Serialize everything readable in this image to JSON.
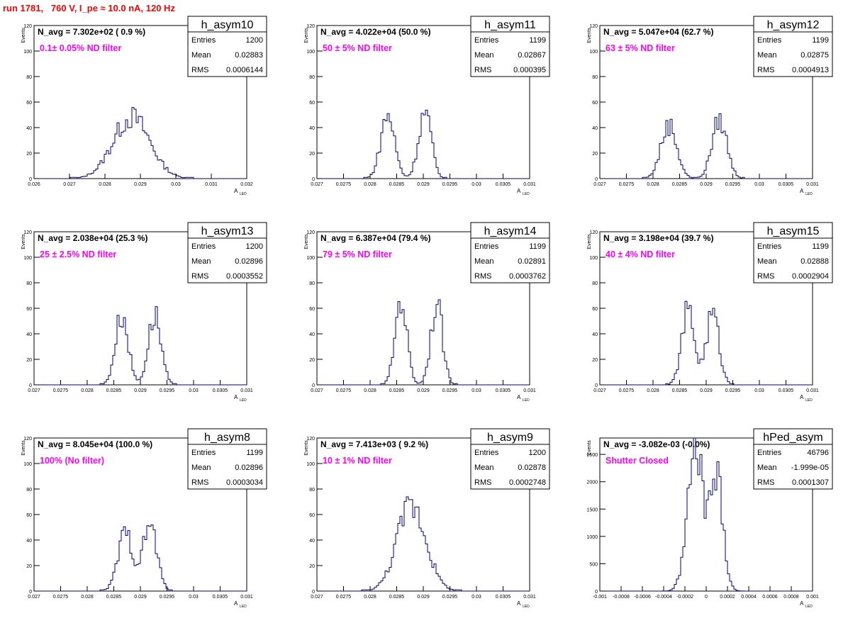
{
  "run_title": "run 1781,   760 V, I_pe ≈ 10.0 nA, 120 Hz",
  "colors": {
    "line": "#000080",
    "annot": "#ff00ff",
    "title": "#ff0000"
  },
  "stat_labels": {
    "entries": "Entries",
    "mean": "Mean",
    "rms": "RMS"
  },
  "chart_data": [
    {
      "type": "histogram",
      "title": "h_asym10",
      "xlabel": "A",
      "xlabel_sub": "LED",
      "ylabel": "Events",
      "navg": "N_avg = 7.302e+02 ( 0.9 %)",
      "filter": "0.1± 0.05% ND filter",
      "entries": "1200",
      "mean": "0.02883",
      "rms": "0.0006144",
      "xlim": [
        0.026,
        0.032
      ],
      "ylim": [
        0,
        120
      ],
      "xticks": [
        "0.026",
        "0.027",
        "0.028",
        "0.029",
        "0.03",
        "0.031",
        "0.032"
      ],
      "yticks": [
        "0",
        "20",
        "40",
        "60",
        "80",
        "100",
        "120"
      ],
      "peaks": [
        [
          0.02875,
          48,
          0.00052
        ]
      ],
      "bins": [
        0.0271,
        0.0282,
        0.029,
        0.0303
      ],
      "nbins": 100
    },
    {
      "type": "histogram",
      "title": "h_asym11",
      "xlabel": "A",
      "xlabel_sub": "LED",
      "ylabel": "Events",
      "navg": "N_avg = 4.022e+04 (50.0 %)",
      "filter": "50 ± 5% ND filter",
      "entries": "1199",
      "mean": "0.02867",
      "rms": "0.000395",
      "xlim": [
        0.027,
        0.031
      ],
      "ylim": [
        0,
        120
      ],
      "xticks": [
        "0.027",
        "0.0275",
        "0.028",
        "0.0285",
        "0.029",
        "0.0295",
        "0.03",
        "0.0305",
        "0.031"
      ],
      "yticks": [
        "0",
        "20",
        "40",
        "60",
        "80",
        "100",
        "120"
      ],
      "peaks": [
        [
          0.02833,
          50,
          0.00013
        ],
        [
          0.02903,
          52,
          0.00012
        ]
      ],
      "nbins": 100
    },
    {
      "type": "histogram",
      "title": "h_asym12",
      "xlabel": "A",
      "xlabel_sub": "LED",
      "ylabel": "Events",
      "navg": "N_avg = 5.047e+04 (62.7 %)",
      "filter": "63 ± 5% ND filter",
      "entries": "1199",
      "mean": "0.02875",
      "rms": "0.0004913",
      "xlim": [
        0.027,
        0.031
      ],
      "ylim": [
        0,
        120
      ],
      "xticks": [
        "0.027",
        "0.0275",
        "0.028",
        "0.0285",
        "0.029",
        "0.0295",
        "0.03",
        "0.0305",
        "0.031"
      ],
      "yticks": [
        "0",
        "20",
        "40",
        "60",
        "80",
        "100",
        "120"
      ],
      "peaks": [
        [
          0.0283,
          42,
          0.00015
        ],
        [
          0.02925,
          46,
          0.00014
        ]
      ],
      "nbins": 100
    },
    {
      "type": "histogram",
      "title": "h_asym13",
      "xlabel": "A",
      "xlabel_sub": "LED",
      "ylabel": "Events",
      "navg": "N_avg = 2.038e+04 (25.3 %)",
      "filter": "25 ± 2.5% ND filter",
      "entries": "1200",
      "mean": "0.02896",
      "rms": "0.0003552",
      "xlim": [
        0.027,
        0.031
      ],
      "ylim": [
        0,
        120
      ],
      "xticks": [
        "0.027",
        "0.0275",
        "0.028",
        "0.0285",
        "0.029",
        "0.0295",
        "0.03",
        "0.0305",
        "0.031"
      ],
      "yticks": [
        "0",
        "20",
        "40",
        "60",
        "80",
        "100",
        "120"
      ],
      "peaks": [
        [
          0.02865,
          55,
          0.00012
        ],
        [
          0.02927,
          55,
          0.00012
        ]
      ],
      "nbins": 100
    },
    {
      "type": "histogram",
      "title": "h_asym14",
      "xlabel": "A",
      "xlabel_sub": "LED",
      "ylabel": "Events",
      "navg": "N_avg = 6.387e+04 (79.4 %)",
      "filter": "79 ± 5% ND filter",
      "entries": "1199",
      "mean": "0.02891",
      "rms": "0.0003762",
      "xlim": [
        0.027,
        0.031
      ],
      "ylim": [
        0,
        120
      ],
      "xticks": [
        "0.027",
        "0.0275",
        "0.028",
        "0.0285",
        "0.029",
        "0.0295",
        "0.03",
        "0.0305",
        "0.031"
      ],
      "yticks": [
        "0",
        "20",
        "40",
        "60",
        "80",
        "100",
        "120"
      ],
      "peaks": [
        [
          0.02858,
          68,
          0.00011
        ],
        [
          0.02925,
          64,
          0.00011
        ]
      ],
      "nbins": 100
    },
    {
      "type": "histogram",
      "title": "h_asym15",
      "xlabel": "A",
      "xlabel_sub": "LED",
      "ylabel": "Events",
      "navg": "N_avg = 3.198e+04 (39.7 %)",
      "filter": "40 ± 4% ND filter",
      "entries": "1199",
      "mean": "0.02888",
      "rms": "0.0002904",
      "xlim": [
        0.027,
        0.031
      ],
      "ylim": [
        0,
        120
      ],
      "xticks": [
        "0.027",
        "0.0275",
        "0.028",
        "0.0285",
        "0.029",
        "0.0295",
        "0.03",
        "0.0305",
        "0.031"
      ],
      "yticks": [
        "0",
        "20",
        "40",
        "60",
        "80",
        "100",
        "120"
      ],
      "peaks": [
        [
          0.02866,
          58,
          0.00012
        ],
        [
          0.02912,
          56,
          0.00012
        ]
      ],
      "nbins": 100
    },
    {
      "type": "histogram",
      "title": "h_asym8",
      "xlabel": "A",
      "xlabel_sub": "LED",
      "ylabel": "Events",
      "navg": "N_avg = 8.045e+04 (100.0 %)",
      "filter": "100% (No filter)",
      "entries": "1199",
      "mean": "0.02896",
      "rms": "0.0003034",
      "xlim": [
        0.027,
        0.031
      ],
      "ylim": [
        0,
        120
      ],
      "xticks": [
        "0.027",
        "0.0275",
        "0.028",
        "0.0285",
        "0.029",
        "0.0295",
        "0.03",
        "0.0305",
        "0.031"
      ],
      "yticks": [
        "0",
        "20",
        "40",
        "60",
        "80",
        "100",
        "120"
      ],
      "peaks": [
        [
          0.02872,
          45,
          0.00014
        ],
        [
          0.02918,
          52,
          0.00013
        ]
      ],
      "nbins": 100
    },
    {
      "type": "histogram",
      "title": "h_asym9",
      "xlabel": "A",
      "xlabel_sub": "LED",
      "ylabel": "Events",
      "navg": "N_avg = 7.413e+03 ( 9.2 %)",
      "filter": "10 ± 1% ND filter",
      "entries": "1200",
      "mean": "0.02878",
      "rms": "0.0002748",
      "xlim": [
        0.027,
        0.031
      ],
      "ylim": [
        0,
        120
      ],
      "xticks": [
        "0.027",
        "0.0275",
        "0.028",
        "0.0285",
        "0.029",
        "0.0295",
        "0.03",
        "0.0305",
        "0.031"
      ],
      "yticks": [
        "0",
        "20",
        "40",
        "60",
        "80",
        "100",
        "120"
      ],
      "peaks": [
        [
          0.02878,
          68,
          0.00027
        ]
      ],
      "nbins": 100
    },
    {
      "type": "histogram",
      "title": "hPed_asym",
      "xlabel": "A",
      "xlabel_sub": "LED",
      "ylabel": "Events",
      "navg": "N_avg = -3.082e-03 (-0.0%)",
      "filter": "Shutter Closed",
      "entries": "46796",
      "mean": "-1.999e-05",
      "rms": "0.0001307",
      "xlim": [
        -0.001,
        0.001
      ],
      "ylim": [
        0,
        2800
      ],
      "xticks": [
        "-0.001",
        "-0.0008",
        "-0.0006",
        "-0.0004",
        "-0.0002",
        "0",
        "0.0002",
        "0.0004",
        "0.0006",
        "0.0008",
        "0.001"
      ],
      "yticks": [
        "0",
        "500",
        "1000",
        "1500",
        "2000",
        "2500"
      ],
      "peaks": [
        [
          -0.0001,
          2550,
          7.5e-05
        ],
        [
          0.0001,
          2050,
          6e-05
        ]
      ],
      "nbins": 100
    }
  ]
}
